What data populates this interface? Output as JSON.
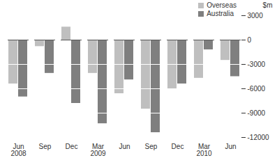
{
  "chart_data": {
    "type": "bar",
    "ylabel": "$m",
    "categories": [
      "Jun\n2008",
      "Sep",
      "Dec",
      "Mar\n2009",
      "Jun",
      "Sep",
      "Dec",
      "Mar\n2010",
      "Jun"
    ],
    "series": [
      {
        "name": "Overseas",
        "color": "#bfbfbf",
        "values": [
          -5400,
          -800,
          1600,
          -4100,
          -6600,
          -8500,
          -6000,
          -4700,
          -2500
        ]
      },
      {
        "name": "Australia",
        "color": "#7f7f7f",
        "values": [
          -7000,
          -4100,
          -7800,
          -10300,
          -4900,
          -11400,
          -5400,
          -1200,
          -4500
        ]
      }
    ],
    "ylim": [
      -12000,
      3000
    ],
    "yticks": [
      -12000,
      -9000,
      -6000,
      -3000,
      0,
      3000
    ],
    "grid": true,
    "legend": "top-right"
  }
}
